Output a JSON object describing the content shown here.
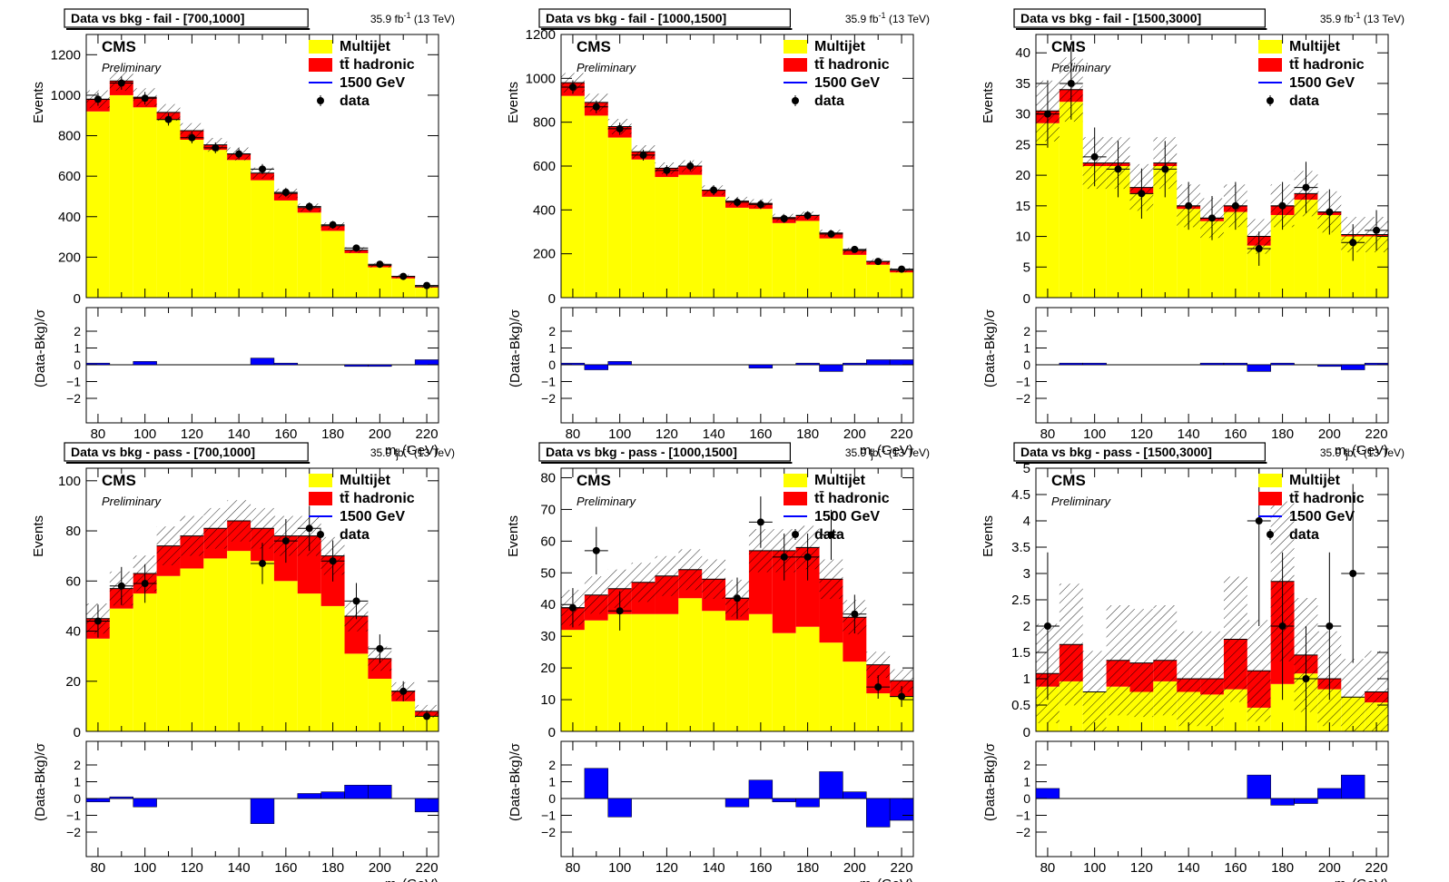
{
  "figure": {
    "x_label_main": "m",
    "x_label_sub": "j",
    "x_label_unit": " (GeV)",
    "ratio_ylabel": "(Data-Bkg)/σ",
    "main_ylabel": "Events",
    "cms_label": "CMS",
    "preliminary_label": "Preliminary",
    "lumi_label": "35.9 fb",
    "lumi_sup": "-1",
    "lumi_suffix": " (13 TeV)",
    "legend": [
      {
        "label": "Multijet",
        "color": "#ffff00",
        "kind": "box"
      },
      {
        "label": "tt̄ hadronic",
        "color": "#ff0000",
        "kind": "box"
      },
      {
        "label": "1500 GeV",
        "color": "#0000ff",
        "kind": "line"
      },
      {
        "label": "data",
        "color": "#000000",
        "kind": "marker"
      }
    ],
    "colors": {
      "multijet": "#ffff00",
      "ttbar": "#ff0000",
      "pull": "#0000ff",
      "data": "#000000"
    }
  },
  "chart_data": [
    {
      "type": "bar",
      "title": "Data vs bkg - fail - [700,1000]",
      "xlim": [
        75,
        225
      ],
      "ylim": [
        0,
        1300
      ],
      "yticks": [
        200,
        400,
        600,
        800,
        1000,
        1200
      ],
      "xticks": [
        80,
        100,
        120,
        140,
        160,
        180,
        200,
        220
      ],
      "bin_edges": [
        75,
        85,
        95,
        105,
        115,
        125,
        135,
        145,
        155,
        165,
        175,
        185,
        195,
        205,
        215,
        225
      ],
      "multijet": [
        920,
        1000,
        940,
        880,
        780,
        730,
        680,
        580,
        480,
        420,
        330,
        220,
        150,
        95,
        50
      ],
      "ttbar": [
        60,
        70,
        50,
        35,
        45,
        25,
        30,
        35,
        35,
        25,
        25,
        15,
        10,
        10,
        5
      ],
      "data": [
        980,
        1060,
        985,
        880,
        790,
        740,
        710,
        635,
        520,
        450,
        360,
        245,
        165,
        105,
        60
      ],
      "data_err": [
        32,
        33,
        31,
        30,
        28,
        27,
        27,
        25,
        23,
        21,
        19,
        16,
        13,
        10,
        8
      ],
      "pull": [
        0.1,
        0.0,
        0.2,
        0.0,
        0.0,
        0.0,
        0.0,
        0.4,
        0.1,
        0.0,
        0.0,
        -0.1,
        -0.1,
        0.0,
        0.3
      ]
    },
    {
      "type": "bar",
      "title": "Data vs bkg - fail - [1000,1500]",
      "xlim": [
        75,
        225
      ],
      "ylim": [
        0,
        1200
      ],
      "yticks": [
        200,
        400,
        600,
        800,
        1000,
        1200
      ],
      "xticks": [
        80,
        100,
        120,
        140,
        160,
        180,
        200,
        220
      ],
      "bin_edges": [
        75,
        85,
        95,
        105,
        115,
        125,
        135,
        145,
        155,
        165,
        175,
        185,
        195,
        205,
        215,
        225
      ],
      "multijet": [
        920,
        830,
        730,
        630,
        550,
        560,
        460,
        410,
        405,
        340,
        350,
        270,
        195,
        150,
        115
      ],
      "ttbar": [
        60,
        60,
        50,
        35,
        40,
        40,
        30,
        30,
        25,
        25,
        25,
        25,
        20,
        15,
        10
      ],
      "data": [
        960,
        870,
        770,
        650,
        580,
        600,
        490,
        435,
        425,
        360,
        375,
        290,
        220,
        165,
        130
      ],
      "data_err": [
        31,
        29,
        28,
        25,
        24,
        24,
        22,
        21,
        21,
        19,
        19,
        17,
        15,
        13,
        11
      ],
      "pull": [
        0.1,
        -0.3,
        0.2,
        0.0,
        0.0,
        0.0,
        0.0,
        0.0,
        -0.2,
        0.0,
        0.1,
        -0.4,
        0.1,
        0.3,
        0.3
      ]
    },
    {
      "type": "bar",
      "title": "Data vs bkg - fail - [1500,3000]",
      "xlim": [
        75,
        225
      ],
      "ylim": [
        0,
        43
      ],
      "yticks": [
        5,
        10,
        15,
        20,
        25,
        30,
        35,
        40
      ],
      "xticks": [
        80,
        100,
        120,
        140,
        160,
        180,
        200,
        220
      ],
      "bin_edges": [
        75,
        85,
        95,
        105,
        115,
        125,
        135,
        145,
        155,
        165,
        175,
        185,
        195,
        205,
        215,
        225
      ],
      "multijet": [
        28.5,
        32,
        21.5,
        21.5,
        17,
        21.5,
        14.5,
        12.5,
        14,
        8.5,
        13.5,
        16,
        13.5,
        10,
        10
      ],
      "ttbar": [
        2,
        2,
        0.5,
        0.5,
        1,
        0.5,
        0.5,
        0.5,
        1,
        1.5,
        1.5,
        1,
        0.5,
        0.3,
        0.3
      ],
      "data": [
        30,
        35,
        23,
        21,
        17,
        21,
        15,
        13,
        15,
        8,
        15,
        18,
        14,
        9,
        11
      ],
      "data_err": [
        5.5,
        5.9,
        4.8,
        4.6,
        4.1,
        4.6,
        3.9,
        3.6,
        3.9,
        2.8,
        3.9,
        4.2,
        3.7,
        3.0,
        3.3
      ],
      "pull": [
        0.0,
        0.1,
        0.1,
        0.0,
        0.0,
        0.0,
        0.0,
        0.1,
        0.1,
        -0.4,
        0.1,
        0.0,
        -0.1,
        -0.3,
        0.1
      ]
    },
    {
      "type": "bar",
      "title": "Data vs bkg - pass - [700,1000]",
      "xlim": [
        75,
        225
      ],
      "ylim": [
        0,
        105
      ],
      "yticks": [
        20,
        40,
        60,
        80,
        100
      ],
      "xticks": [
        80,
        100,
        120,
        140,
        160,
        180,
        200,
        220
      ],
      "bin_edges": [
        75,
        85,
        95,
        105,
        115,
        125,
        135,
        145,
        155,
        165,
        175,
        185,
        195,
        205,
        215,
        225
      ],
      "multijet": [
        37,
        49,
        55,
        62,
        65,
        69,
        72,
        68,
        60,
        55,
        50,
        31,
        21,
        12,
        6
      ],
      "ttbar": [
        8,
        8,
        8,
        12,
        13,
        12,
        12,
        13,
        18,
        23,
        20,
        15,
        8,
        4,
        2
      ],
      "data": [
        44,
        58,
        59,
        0,
        0,
        0,
        0,
        67,
        76,
        81,
        68,
        52,
        33,
        16,
        6
      ],
      "data_err": [
        6.6,
        7.6,
        7.7,
        0,
        0,
        0,
        0,
        8.2,
        8.7,
        9.0,
        8.2,
        7.2,
        5.7,
        4.0,
        2.4
      ],
      "data_show": [
        1,
        1,
        1,
        0,
        0,
        0,
        0,
        1,
        1,
        1,
        1,
        1,
        1,
        1,
        1
      ],
      "data_x": [
        80,
        90,
        100,
        0,
        0,
        0,
        0,
        150,
        160,
        170,
        180,
        190,
        200,
        210,
        220
      ],
      "pull": [
        -0.2,
        0.1,
        -0.5,
        0.0,
        0.0,
        0.0,
        0.0,
        -1.5,
        0.0,
        0.3,
        0.4,
        0.8,
        0.8,
        0.0,
        -0.8
      ]
    },
    {
      "type": "bar",
      "title": "Data vs bkg - pass - [1000,1500]",
      "xlim": [
        75,
        225
      ],
      "ylim": [
        0,
        83
      ],
      "yticks": [
        10,
        20,
        30,
        40,
        50,
        60,
        70,
        80
      ],
      "xticks": [
        80,
        100,
        120,
        140,
        160,
        180,
        200,
        220
      ],
      "bin_edges": [
        75,
        85,
        95,
        105,
        115,
        125,
        135,
        145,
        155,
        165,
        175,
        185,
        195,
        205,
        215,
        225
      ],
      "multijet": [
        32,
        35,
        37,
        37,
        37,
        42,
        38,
        35,
        37,
        31,
        33,
        28,
        22,
        12,
        11
      ],
      "ttbar": [
        7,
        8,
        8,
        10,
        12,
        9,
        10,
        7,
        20,
        26,
        25,
        20,
        14,
        9,
        5
      ],
      "data": [
        39,
        57,
        38,
        0,
        0,
        0,
        0,
        42,
        66,
        55,
        55,
        62,
        37,
        14,
        11
      ],
      "data_err": [
        6.2,
        7.5,
        6.2,
        0,
        0,
        0,
        0,
        6.5,
        8.1,
        7.4,
        7.4,
        7.9,
        6.1,
        3.7,
        3.3
      ],
      "data_x": [
        80,
        90,
        100,
        0,
        0,
        0,
        0,
        150,
        160,
        170,
        180,
        190,
        200,
        210,
        220
      ],
      "pull": [
        0.0,
        1.8,
        -1.1,
        0.0,
        0.0,
        0.0,
        0.0,
        -0.5,
        1.1,
        -0.2,
        -0.5,
        1.6,
        0.4,
        -1.7,
        -1.3
      ]
    },
    {
      "type": "bar",
      "title": "Data vs bkg - pass - [1500,3000]",
      "xlim": [
        75,
        225
      ],
      "ylim": [
        0,
        5
      ],
      "yticks": [
        0.5,
        1,
        1.5,
        2,
        2.5,
        3,
        3.5,
        4,
        4.5,
        5
      ],
      "xticks": [
        80,
        100,
        120,
        140,
        160,
        180,
        200,
        220
      ],
      "bin_edges": [
        75,
        85,
        95,
        105,
        115,
        125,
        135,
        145,
        155,
        165,
        175,
        185,
        195,
        205,
        215,
        225
      ],
      "multijet": [
        0.85,
        0.95,
        0.75,
        0.85,
        0.75,
        0.95,
        0.75,
        0.7,
        0.8,
        0.45,
        0.9,
        1.1,
        0.8,
        0.65,
        0.55
      ],
      "ttbar": [
        0.25,
        0.7,
        0.0,
        0.5,
        0.55,
        0.4,
        0.25,
        0.3,
        0.95,
        0.7,
        1.95,
        0.35,
        0.2,
        0.0,
        0.2
      ],
      "data": [
        2,
        0,
        0,
        0,
        0,
        0,
        0,
        0,
        0,
        4,
        2,
        1,
        2,
        3,
        0
      ],
      "data_err": [
        1.4,
        0,
        0,
        0,
        0,
        0,
        0,
        0,
        0,
        2.0,
        1.4,
        1.0,
        1.4,
        1.7,
        0
      ],
      "data_x": [
        80,
        0,
        0,
        0,
        0,
        0,
        0,
        0,
        0,
        170,
        180,
        190,
        200,
        210,
        0
      ],
      "pull": [
        0.6,
        0.0,
        0.0,
        0.0,
        0.0,
        0.0,
        0.0,
        0.0,
        0.0,
        1.4,
        -0.4,
        -0.3,
        0.6,
        1.4,
        0.0
      ]
    }
  ]
}
